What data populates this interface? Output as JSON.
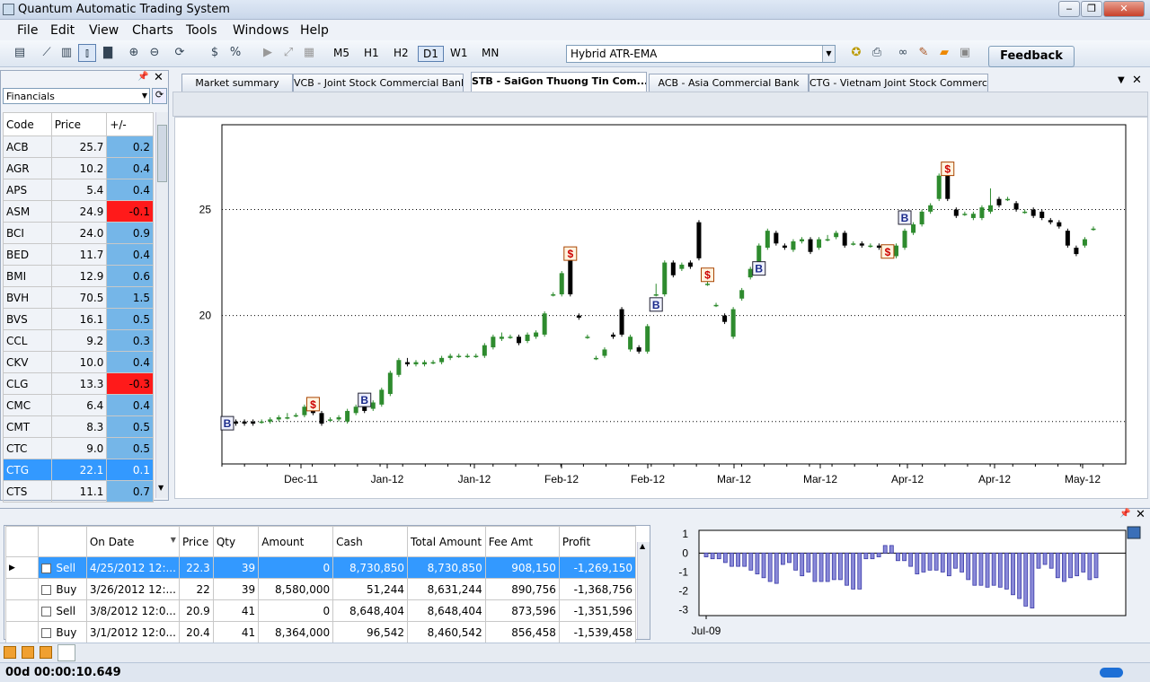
{
  "window": {
    "title": "Quantum Automatic Trading System"
  },
  "menu": [
    "File",
    "Edit",
    "View",
    "Charts",
    "Tools",
    "Windows",
    "Help"
  ],
  "timeframes": [
    "M5",
    "H1",
    "H2",
    "D1",
    "W1",
    "MN"
  ],
  "selected_timeframe": "D1",
  "strategy": "Hybrid ATR-EMA",
  "feedback_label": "Feedback",
  "category": "Financials",
  "watchlist": {
    "headers": [
      "Code",
      "Price",
      "+/-"
    ],
    "rows": [
      [
        "ACB",
        "25.7",
        "0.2"
      ],
      [
        "AGR",
        "10.2",
        "0.4"
      ],
      [
        "APS",
        "5.4",
        "0.4"
      ],
      [
        "ASM",
        "24.9",
        "-0.1"
      ],
      [
        "BCI",
        "24.0",
        "0.9"
      ],
      [
        "BED",
        "11.7",
        "0.4"
      ],
      [
        "BMI",
        "12.9",
        "0.6"
      ],
      [
        "BVH",
        "70.5",
        "1.5"
      ],
      [
        "BVS",
        "16.1",
        "0.5"
      ],
      [
        "CCL",
        "9.2",
        "0.3"
      ],
      [
        "CKV",
        "10.0",
        "0.4"
      ],
      [
        "CLG",
        "13.3",
        "-0.3"
      ],
      [
        "CMC",
        "6.4",
        "0.4"
      ],
      [
        "CMT",
        "8.3",
        "0.5"
      ],
      [
        "CTC",
        "9.0",
        "0.5"
      ],
      [
        "CTG",
        "22.1",
        "0.1"
      ],
      [
        "CTS",
        "11.1",
        "0.7"
      ]
    ],
    "selected": "CTG"
  },
  "tabs": [
    "Market summary",
    "VCB - Joint Stock Commercial Bank ...",
    "STB - SaiGon Thuong Tin Com...",
    "ACB - Asia Commercial Bank",
    "CTG - Vietnam Joint Stock Commerc..."
  ],
  "active_tab": 2,
  "chart_data": [
    {
      "type": "candlestick",
      "x_ticks": [
        "Dec-11",
        "Jan-12",
        "Jan-12",
        "Feb-12",
        "Feb-12",
        "Mar-12",
        "Mar-12",
        "Apr-12",
        "Apr-12",
        "May-12"
      ],
      "y_ticks": [
        20,
        25
      ],
      "ylim": [
        13,
        29
      ],
      "grid": "horizontal dotted",
      "candles": [
        [
          15.0,
          14.8,
          15.1,
          14.7
        ],
        [
          15.0,
          14.9,
          15.1,
          14.8
        ],
        [
          15.0,
          14.9,
          15.1,
          14.8
        ],
        [
          15.0,
          14.9,
          15.1,
          14.8
        ],
        [
          15.0,
          15.0,
          15.1,
          14.9
        ],
        [
          15.0,
          15.1,
          15.2,
          14.9
        ],
        [
          15.1,
          15.2,
          15.3,
          15.0
        ],
        [
          15.2,
          15.2,
          15.4,
          15.1
        ],
        [
          15.3,
          15.3,
          15.4,
          15.2
        ],
        [
          15.3,
          15.7,
          15.8,
          15.2
        ],
        [
          15.5,
          15.4,
          15.6,
          15.3
        ],
        [
          15.4,
          14.9,
          15.5,
          14.8
        ],
        [
          15.1,
          15.1,
          15.2,
          15.0
        ],
        [
          15.1,
          15.2,
          15.3,
          15.0
        ],
        [
          15.0,
          15.5,
          15.6,
          14.9
        ],
        [
          15.4,
          15.7,
          15.8,
          15.3
        ],
        [
          15.7,
          15.5,
          15.8,
          15.4
        ],
        [
          15.6,
          15.9,
          16.0,
          15.5
        ],
        [
          15.8,
          16.5,
          16.6,
          15.7
        ],
        [
          16.3,
          17.3,
          17.4,
          16.2
        ],
        [
          17.2,
          17.9,
          18.0,
          17.1
        ],
        [
          17.8,
          17.7,
          18.0,
          17.6
        ],
        [
          17.7,
          17.8,
          17.9,
          17.6
        ],
        [
          17.7,
          17.8,
          17.9,
          17.6
        ],
        [
          17.8,
          17.8,
          17.9,
          17.7
        ],
        [
          17.8,
          18.0,
          18.1,
          17.7
        ],
        [
          18.0,
          18.1,
          18.2,
          17.9
        ],
        [
          18.1,
          18.1,
          18.2,
          18.0
        ],
        [
          18.1,
          18.1,
          18.2,
          18.0
        ],
        [
          18.1,
          18.1,
          18.2,
          18.0
        ],
        [
          18.1,
          18.6,
          18.7,
          18.0
        ],
        [
          18.5,
          19.0,
          19.1,
          18.4
        ],
        [
          18.9,
          19.0,
          19.2,
          18.8
        ],
        [
          19.0,
          19.0,
          19.1,
          18.9
        ],
        [
          19.0,
          18.7,
          19.1,
          18.6
        ],
        [
          18.8,
          19.1,
          19.2,
          18.7
        ],
        [
          19.0,
          19.2,
          19.3,
          18.9
        ],
        [
          19.1,
          20.1,
          20.2,
          19.0
        ],
        [
          21.0,
          21.0,
          21.1,
          20.9
        ],
        [
          21.0,
          22.0,
          22.1,
          20.9
        ],
        [
          22.8,
          21.0,
          22.9,
          20.9
        ],
        [
          20.0,
          19.9,
          20.1,
          19.8
        ],
        [
          19.0,
          19.0,
          19.1,
          18.9
        ],
        [
          18.0,
          18.0,
          18.1,
          17.9
        ],
        [
          18.1,
          18.4,
          18.5,
          18.0
        ],
        [
          19.1,
          19.0,
          19.2,
          18.9
        ],
        [
          20.3,
          19.1,
          20.4,
          19.0
        ],
        [
          18.4,
          19.0,
          19.1,
          18.3
        ],
        [
          18.5,
          18.3,
          18.6,
          18.2
        ],
        [
          18.3,
          19.5,
          19.6,
          18.2
        ],
        [
          21.0,
          21.0,
          21.5,
          20.9
        ],
        [
          21.0,
          22.5,
          22.6,
          20.9
        ],
        [
          22.5,
          21.9,
          22.6,
          21.8
        ],
        [
          22.2,
          22.4,
          22.5,
          22.1
        ],
        [
          22.5,
          22.3,
          22.6,
          22.2
        ],
        [
          24.4,
          22.7,
          24.5,
          22.6
        ],
        [
          21.5,
          21.5,
          21.7,
          21.4
        ],
        [
          20.5,
          20.5,
          20.6,
          20.4
        ],
        [
          20.0,
          19.7,
          20.1,
          19.6
        ],
        [
          19.0,
          20.3,
          20.4,
          18.9
        ],
        [
          20.8,
          21.2,
          21.3,
          20.7
        ],
        [
          21.8,
          22.2,
          22.3,
          21.7
        ],
        [
          22.5,
          23.3,
          23.4,
          22.4
        ],
        [
          23.2,
          24.0,
          24.1,
          23.1
        ],
        [
          23.9,
          23.4,
          24.0,
          23.3
        ],
        [
          23.3,
          23.2,
          23.4,
          23.1
        ],
        [
          23.1,
          23.5,
          23.6,
          23.0
        ],
        [
          23.5,
          23.6,
          23.7,
          23.4
        ],
        [
          23.6,
          23.0,
          23.7,
          22.9
        ],
        [
          23.2,
          23.6,
          23.7,
          23.1
        ],
        [
          23.6,
          23.6,
          23.8,
          23.5
        ],
        [
          23.7,
          23.9,
          24.0,
          23.6
        ],
        [
          23.9,
          23.3,
          24.0,
          23.2
        ],
        [
          23.4,
          23.4,
          23.5,
          23.3
        ],
        [
          23.4,
          23.3,
          23.5,
          23.2
        ],
        [
          23.3,
          23.3,
          23.4,
          23.2
        ],
        [
          23.3,
          23.2,
          23.4,
          23.1
        ],
        [
          23.1,
          22.8,
          23.2,
          22.7
        ],
        [
          22.8,
          23.3,
          23.4,
          22.7
        ],
        [
          23.2,
          24.0,
          24.1,
          23.1
        ],
        [
          23.9,
          24.3,
          24.4,
          23.8
        ],
        [
          24.3,
          24.9,
          25.0,
          24.2
        ],
        [
          24.9,
          25.2,
          25.3,
          24.8
        ],
        [
          25.5,
          26.6,
          26.7,
          25.4
        ],
        [
          26.7,
          25.5,
          26.8,
          25.4
        ],
        [
          25.0,
          24.7,
          25.1,
          24.6
        ],
        [
          24.8,
          24.8,
          24.9,
          24.7
        ],
        [
          24.6,
          24.8,
          24.9,
          24.5
        ],
        [
          24.6,
          25.1,
          25.2,
          24.5
        ],
        [
          24.9,
          25.2,
          26.0,
          24.8
        ],
        [
          25.5,
          25.2,
          25.6,
          25.1
        ],
        [
          25.5,
          25.5,
          25.6,
          25.4
        ],
        [
          25.3,
          25.0,
          25.4,
          24.9
        ],
        [
          24.9,
          24.9,
          25.0,
          24.8
        ],
        [
          25.0,
          24.7,
          25.1,
          24.6
        ],
        [
          24.9,
          24.6,
          25.0,
          24.5
        ],
        [
          24.5,
          24.4,
          24.6,
          24.3
        ],
        [
          24.4,
          24.2,
          24.5,
          24.1
        ],
        [
          24.0,
          23.3,
          24.1,
          23.2
        ],
        [
          23.2,
          22.9,
          23.3,
          22.8
        ],
        [
          23.3,
          23.6,
          23.7,
          23.2
        ],
        [
          24.1,
          24.1,
          24.2,
          24.0
        ]
      ],
      "signals": [
        {
          "type": "B",
          "i": 0,
          "y": 14.9
        },
        {
          "type": "S",
          "i": 10,
          "y": 15.8
        },
        {
          "type": "B",
          "i": 16,
          "y": 16.0
        },
        {
          "type": "S",
          "i": 40,
          "y": 22.9
        },
        {
          "type": "B",
          "i": 50,
          "y": 20.5
        },
        {
          "type": "S",
          "i": 56,
          "y": 21.9
        },
        {
          "type": "B",
          "i": 62,
          "y": 22.2
        },
        {
          "type": "S",
          "i": 77,
          "y": 23.0
        },
        {
          "type": "B",
          "i": 79,
          "y": 24.6
        },
        {
          "type": "S",
          "i": 84,
          "y": 26.9
        }
      ]
    },
    {
      "type": "bar",
      "x_ticks": [
        "Jul-09"
      ],
      "y_ticks": [
        1,
        0,
        -1,
        -2,
        -3
      ],
      "ylim": [
        -3.3,
        1.2
      ],
      "values": [
        -0.2,
        -0.3,
        -0.3,
        -0.5,
        -0.7,
        -0.7,
        -0.7,
        -0.9,
        -1.1,
        -1.3,
        -1.5,
        -1.6,
        -0.6,
        -0.5,
        -0.9,
        -1.2,
        -1.0,
        -1.5,
        -1.5,
        -1.5,
        -1.4,
        -1.4,
        -1.7,
        -1.9,
        -1.9,
        -0.3,
        -0.3,
        -0.2,
        0.4,
        0.4,
        -0.4,
        -0.4,
        -0.7,
        -1.1,
        -1.0,
        -0.9,
        -0.9,
        -1.0,
        -1.2,
        -0.8,
        -1.0,
        -1.4,
        -1.7,
        -1.7,
        -1.8,
        -1.7,
        -1.8,
        -1.9,
        -2.2,
        -2.4,
        -2.8,
        -2.9,
        -0.8,
        -0.6,
        -0.8,
        -1.3,
        -1.5,
        -1.3,
        -1.2,
        -1.0,
        -1.4,
        -1.3
      ]
    }
  ],
  "orders": {
    "headers": [
      "On Date",
      "Price",
      "Qty",
      "Amount",
      "Cash",
      "Total Amount",
      "Fee Amt",
      "Profit"
    ],
    "rows": [
      {
        "type": "Sell",
        "date": "4/25/2012 12:...",
        "price": "22.3",
        "qty": "39",
        "amount": "0",
        "cash": "8,730,850",
        "total": "8,730,850",
        "fee": "908,150",
        "profit": "-1,269,150"
      },
      {
        "type": "Buy",
        "date": "3/26/2012 12:...",
        "price": "22",
        "qty": "39",
        "amount": "8,580,000",
        "cash": "51,244",
        "total": "8,631,244",
        "fee": "890,756",
        "profit": "-1,368,756"
      },
      {
        "type": "Sell",
        "date": "3/8/2012 12:0...",
        "price": "20.9",
        "qty": "41",
        "amount": "0",
        "cash": "8,648,404",
        "total": "8,648,404",
        "fee": "873,596",
        "profit": "-1,351,596"
      },
      {
        "type": "Buy",
        "date": "3/1/2012 12:0...",
        "price": "20.4",
        "qty": "41",
        "amount": "8,364,000",
        "cash": "96,542",
        "total": "8,460,542",
        "fee": "856,458",
        "profit": "-1,539,458"
      }
    ],
    "selected": 0
  },
  "status": {
    "elapsed": "00d 00:00:10.649"
  },
  "colors": {
    "bull": "#2e8b2e",
    "bear": "#000000",
    "selection": "#3399ff",
    "change_pos": "#75b6e8",
    "change_neg": "#ff1a1a",
    "oscillator": "#3a3aa8"
  }
}
